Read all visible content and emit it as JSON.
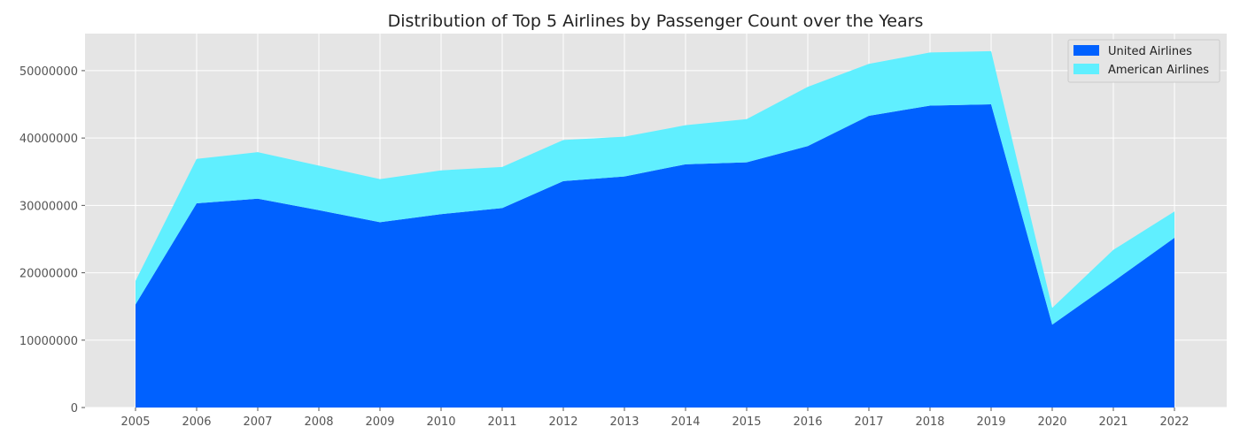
{
  "chart_data": {
    "type": "area",
    "stacked": true,
    "title": "Distribution of Top 5 Airlines by Passenger Count over the Years",
    "xlabel": "",
    "ylabel": "",
    "x": [
      "2005",
      "2006",
      "2007",
      "2008",
      "2009",
      "2010",
      "2011",
      "2012",
      "2013",
      "2014",
      "2015",
      "2016",
      "2017",
      "2018",
      "2019",
      "2020",
      "2021",
      "2022"
    ],
    "ylim": [
      0,
      55500000
    ],
    "yticks": [
      "0",
      "10000000",
      "20000000",
      "30000000",
      "40000000",
      "50000000"
    ],
    "grid": true,
    "legend_position": "top-right",
    "series": [
      {
        "name": "United Airlines",
        "color": "#0061ff",
        "values": [
          15300000,
          30300000,
          31000000,
          29300000,
          27500000,
          28700000,
          29600000,
          33600000,
          34300000,
          36100000,
          36400000,
          38800000,
          43300000,
          44800000,
          45000000,
          12300000,
          18700000,
          25200000
        ]
      },
      {
        "name": "American Airlines",
        "color": "#60efff",
        "values": [
          3500000,
          6600000,
          6900000,
          6600000,
          6400000,
          6500000,
          6100000,
          6100000,
          5900000,
          5800000,
          6400000,
          8800000,
          7700000,
          7900000,
          7900000,
          2500000,
          4700000,
          3900000
        ]
      }
    ]
  }
}
